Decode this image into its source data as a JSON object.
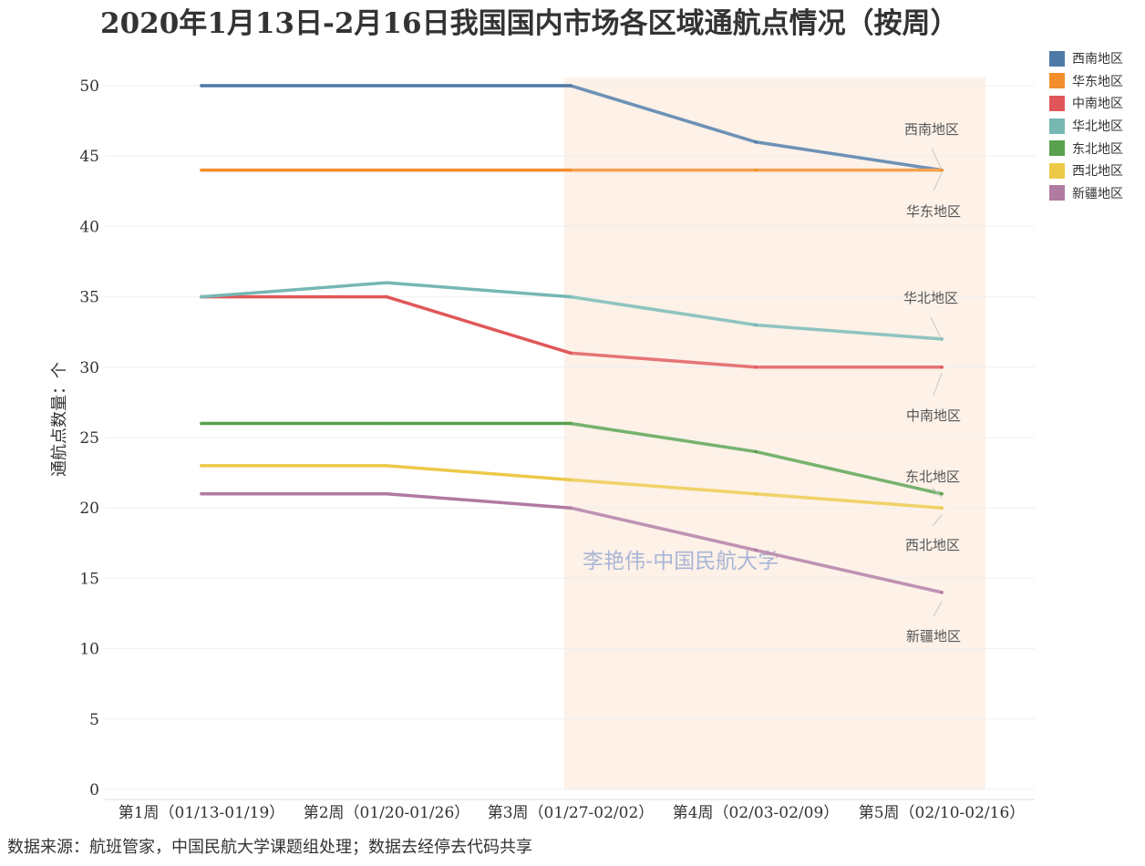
{
  "chart_data": {
    "type": "line",
    "title": "2020年1月13日-2月16日我国国内市场各区域通航点情况（按周）",
    "ylabel": "通航点数量：个",
    "xlabel": "",
    "ylim": [
      0,
      50
    ],
    "yticks": [
      0,
      5,
      10,
      15,
      20,
      25,
      30,
      35,
      40,
      45,
      50
    ],
    "categories": [
      "第1周（01/13-01/19）",
      "第2周（01/20-01/26）",
      "第3周（01/27-02/02）",
      "第4周（02/03-02/09）",
      "第5周（02/10-02/16）"
    ],
    "series": [
      {
        "name": "西南地区",
        "color": "#4e79a7",
        "values": [
          50,
          50,
          50,
          46,
          44
        ]
      },
      {
        "name": "华东地区",
        "color": "#f28e2b",
        "values": [
          44,
          44,
          44,
          44,
          44
        ]
      },
      {
        "name": "中南地区",
        "color": "#e15759",
        "values": [
          35,
          35,
          31,
          30,
          30
        ]
      },
      {
        "name": "华北地区",
        "color": "#76b7b2",
        "values": [
          35,
          36,
          35,
          33,
          32
        ]
      },
      {
        "name": "东北地区",
        "color": "#59a14f",
        "values": [
          26,
          26,
          26,
          24,
          21
        ]
      },
      {
        "name": "西北地区",
        "color": "#edc948",
        "values": [
          23,
          23,
          22,
          21,
          20
        ]
      },
      {
        "name": "新疆地区",
        "color": "#b07aa1",
        "values": [
          21,
          21,
          20,
          17,
          14
        ]
      }
    ],
    "highlight_range": [
      "第3周（01/27-02/02）",
      "第5周（02/10-02/16）"
    ],
    "highlight_color": "#fdf1e8",
    "legend_position": "top-right",
    "grid": true,
    "watermark": "李艳伟-中国民航大学"
  },
  "source_note": "数据来源：航班管家，中国民航大学课题组处理；数据去经停去代码共享"
}
